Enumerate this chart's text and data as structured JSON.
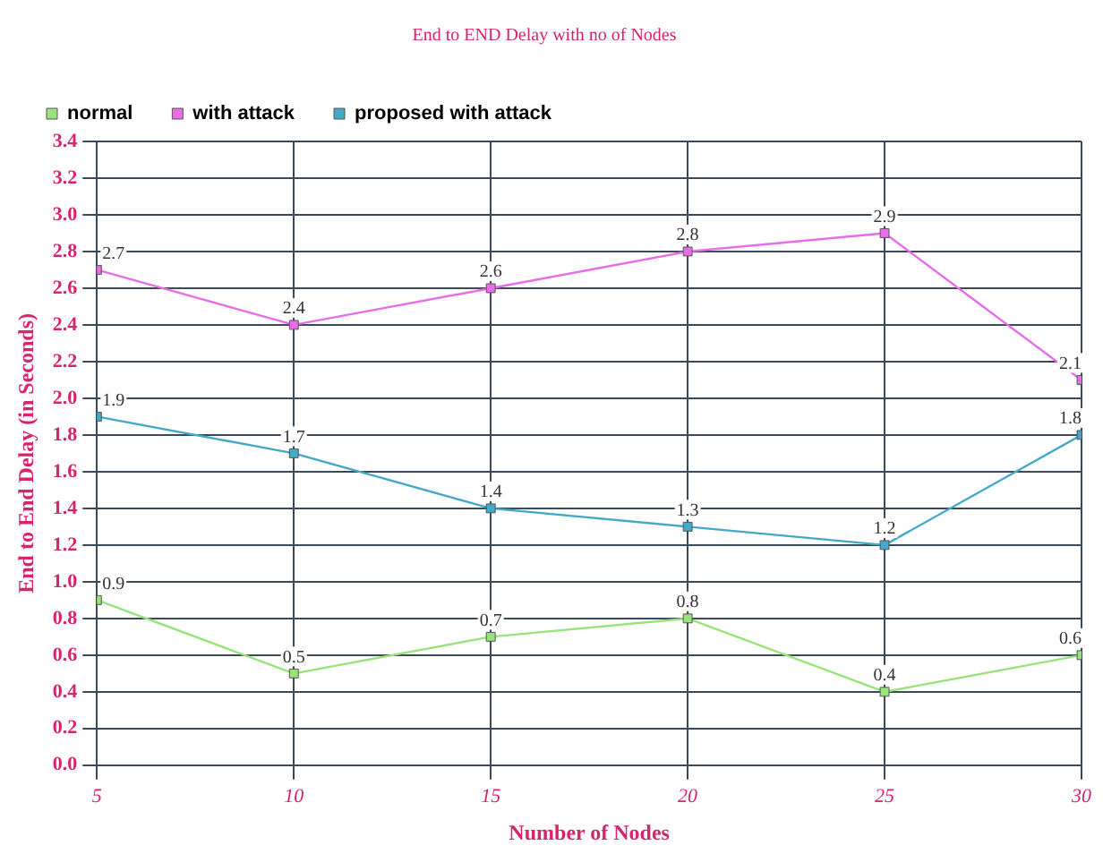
{
  "chart_data": {
    "type": "line",
    "title": "End to END Delay with no of Nodes",
    "xlabel": "Number of Nodes",
    "ylabel": "End to End Delay (in Seconds)",
    "x": [
      5,
      10,
      15,
      20,
      25,
      30
    ],
    "series": [
      {
        "name": "normal",
        "color": "#99e47a",
        "values": [
          0.9,
          0.5,
          0.7,
          0.8,
          0.4,
          0.6
        ]
      },
      {
        "name": "with attack",
        "color": "#e86ee8",
        "values": [
          2.7,
          2.4,
          2.6,
          2.8,
          2.9,
          2.1
        ]
      },
      {
        "name": "proposed with attack",
        "color": "#44a8c8",
        "values": [
          1.9,
          1.7,
          1.4,
          1.3,
          1.2,
          1.8
        ]
      }
    ],
    "xlim": [
      5,
      30
    ],
    "xticks": [
      5,
      10,
      15,
      20,
      25,
      30
    ],
    "ylim": [
      0,
      3.4
    ],
    "yticks": [
      {
        "value": 0,
        "label": "0.0"
      },
      0.2,
      0.4,
      0.6,
      0.8,
      {
        "value": 1,
        "label": "1.0"
      },
      1.2,
      1.4,
      1.6,
      1.8,
      {
        "value": 2,
        "label": "2.0"
      },
      2.2,
      2.4,
      2.6,
      2.8,
      {
        "value": 3,
        "label": "3.0"
      },
      3.2,
      3.4
    ],
    "grid": true,
    "legend": "top left",
    "marker": "square",
    "line_style": "solid",
    "data_labels": true
  }
}
